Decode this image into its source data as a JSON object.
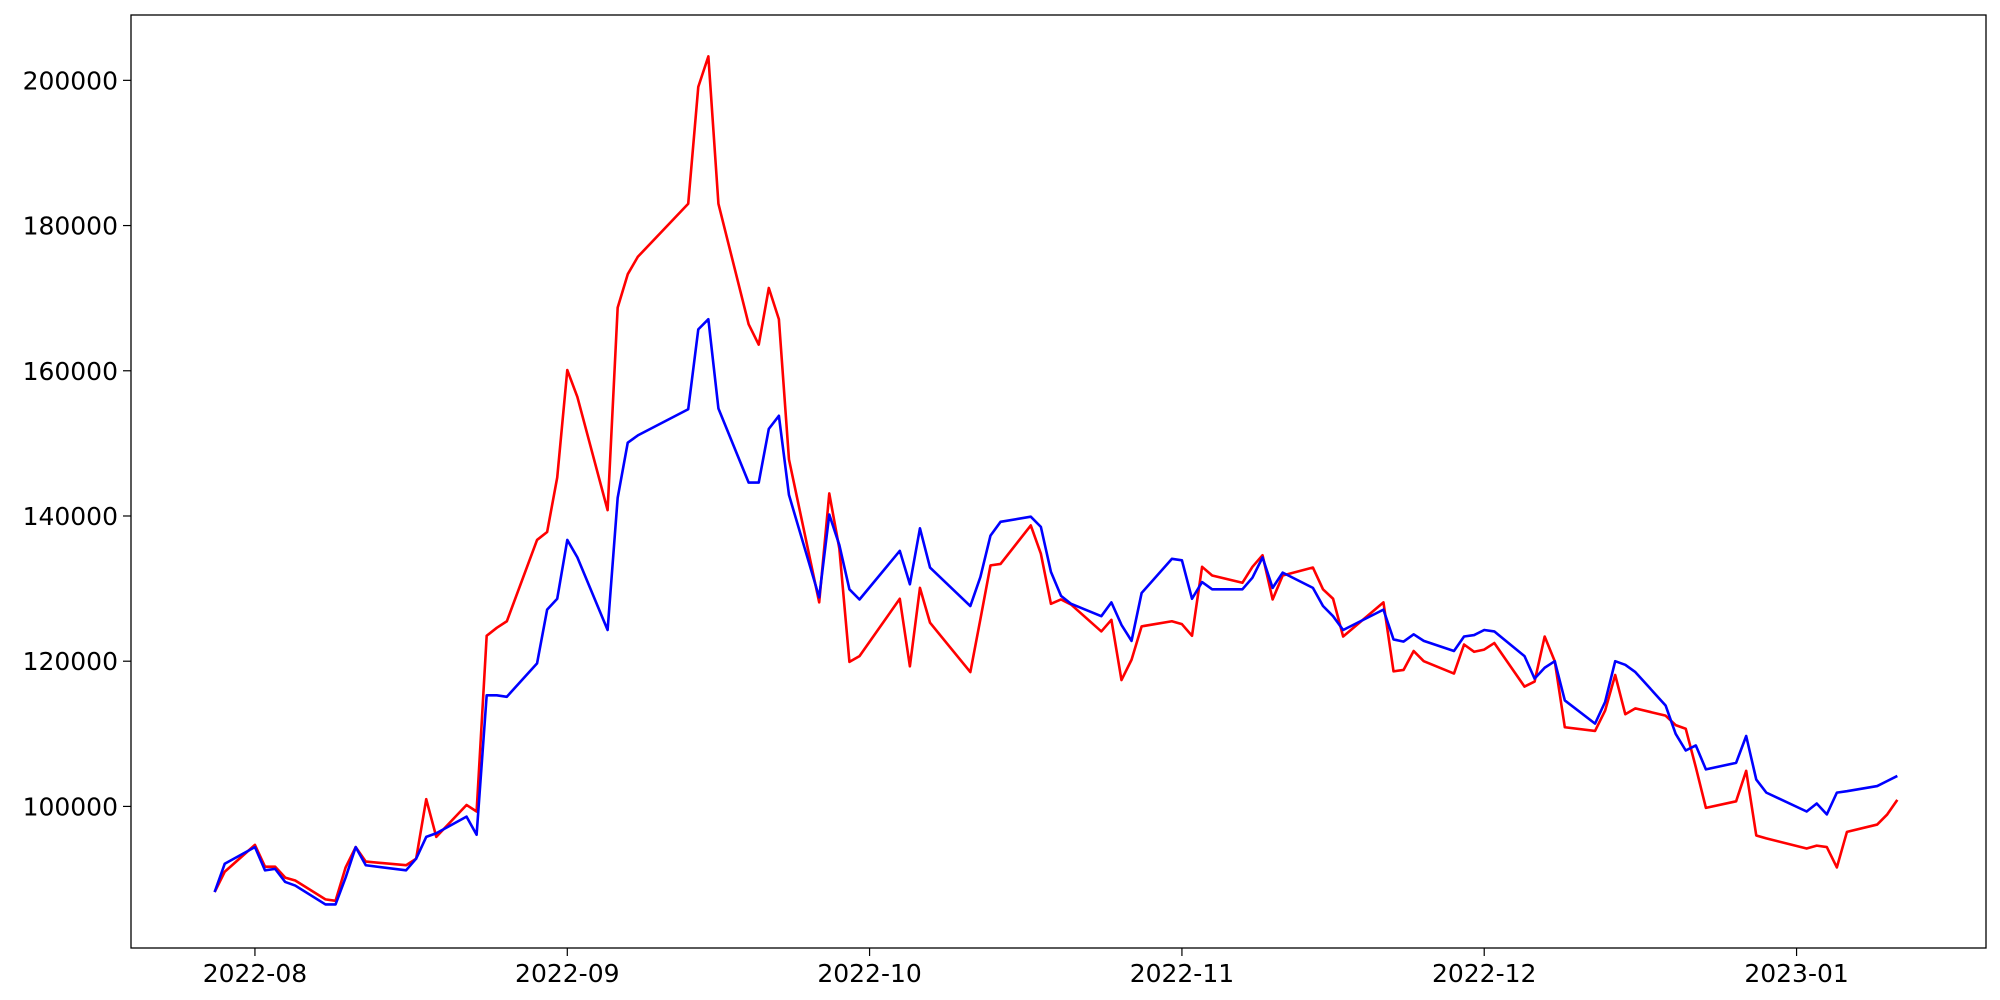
{
  "chart_data": {
    "type": "line",
    "x": [
      -4,
      -3,
      0,
      1,
      2,
      3,
      4,
      7,
      8,
      9,
      10,
      11,
      15,
      16,
      17,
      18,
      21,
      22,
      23,
      24,
      25,
      28,
      29,
      30,
      31,
      32,
      35,
      36,
      37,
      38,
      43,
      44,
      45,
      46,
      49,
      50,
      51,
      52,
      53,
      56,
      57,
      58,
      59,
      60,
      64,
      65,
      66,
      67,
      71,
      72,
      73,
      74,
      77,
      78,
      79,
      80,
      81,
      84,
      85,
      86,
      87,
      88,
      91,
      92,
      93,
      94,
      95,
      98,
      99,
      100,
      101,
      102,
      105,
      106,
      107,
      108,
      112,
      113,
      114,
      115,
      116,
      119,
      120,
      121,
      122,
      123,
      126,
      127,
      128,
      129,
      130,
      133,
      134,
      135,
      136,
      137,
      140,
      141,
      142,
      143,
      144,
      147,
      148,
      149,
      150,
      154,
      155,
      156,
      157,
      158,
      161,
      162,
      163
    ],
    "series": [
      {
        "color": "#ff0000",
        "values": [
          88200,
          91000,
          94700,
          91700,
          91700,
          90200,
          89800,
          87200,
          87000,
          91600,
          94400,
          92400,
          91900,
          92800,
          101000,
          95800,
          100200,
          99300,
          123500,
          124600,
          125500,
          136700,
          137800,
          145300,
          160100,
          156400,
          140800,
          168700,
          173300,
          175700,
          183000,
          199100,
          203300,
          183000,
          166400,
          163600,
          171400,
          167100,
          147800,
          128100,
          143100,
          135500,
          119900,
          120700,
          128600,
          119300,
          130100,
          125300,
          118500,
          125800,
          133200,
          133400,
          138700,
          134800,
          127900,
          128500,
          127800,
          124100,
          125700,
          117400,
          120200,
          124800,
          125500,
          125100,
          123500,
          133000,
          131800,
          130800,
          133000,
          134600,
          128500,
          131800,
          132900,
          129900,
          128600,
          123400,
          128100,
          118600,
          118800,
          121400,
          120000,
          118300,
          122300,
          121300,
          121600,
          122500,
          116500,
          117200,
          123400,
          120000,
          110900,
          110400,
          113200,
          118100,
          112700,
          113500,
          112500,
          111200,
          110700,
          105400,
          99800,
          100700,
          104900,
          96000,
          95600,
          94200,
          94600,
          94400,
          91600,
          96500,
          97500,
          98900,
          100900
        ]
      },
      {
        "color": "#0000ff",
        "values": [
          88200,
          92100,
          94400,
          91200,
          91400,
          89600,
          89100,
          86500,
          86500,
          90200,
          94400,
          91900,
          91200,
          92800,
          95800,
          96300,
          98600,
          96100,
          115300,
          115300,
          115100,
          119700,
          127100,
          128600,
          136700,
          134300,
          124300,
          142500,
          150100,
          151100,
          154700,
          165700,
          167100,
          154800,
          144600,
          144600,
          152000,
          153800,
          142900,
          128800,
          140200,
          136000,
          129900,
          128500,
          135200,
          130600,
          138300,
          132900,
          127600,
          131600,
          137300,
          139200,
          139900,
          138500,
          132300,
          129000,
          127900,
          126200,
          128100,
          125000,
          122800,
          129400,
          134100,
          133900,
          128600,
          130900,
          129900,
          129900,
          131500,
          134300,
          130100,
          132200,
          130100,
          127600,
          126200,
          124300,
          127100,
          123000,
          122700,
          123700,
          122800,
          121400,
          123400,
          123600,
          124300,
          124100,
          120700,
          117600,
          119100,
          120000,
          114600,
          111400,
          114400,
          120000,
          119500,
          118500,
          113900,
          110000,
          107700,
          108400,
          105100,
          106000,
          109700,
          103700,
          101900,
          99300,
          100400,
          98900,
          101900,
          102100,
          102800,
          103500,
          104200
        ]
      }
    ],
    "xlim": [
      -12.3,
      171.8
    ],
    "xticks": [
      {
        "value": 0,
        "label": "2022-08"
      },
      {
        "value": 31,
        "label": "2022-09"
      },
      {
        "value": 61,
        "label": "2022-10"
      },
      {
        "value": 92,
        "label": "2022-11"
      },
      {
        "value": 122,
        "label": "2022-12"
      },
      {
        "value": 153,
        "label": "2023-01"
      }
    ],
    "ylim": [
      80500,
      209000
    ],
    "yticks": [
      100000,
      120000,
      140000,
      160000,
      180000,
      200000
    ],
    "grid": false
  }
}
